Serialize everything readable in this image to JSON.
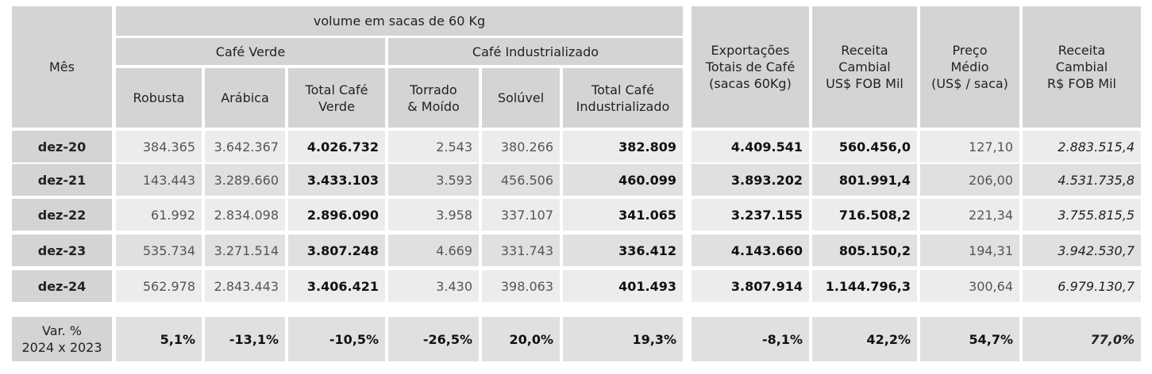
{
  "header": {
    "mes": "Mês",
    "volume_group": "volume em sacas de 60 Kg",
    "cafe_verde": "Café Verde",
    "cafe_industrializado": "Café Industrializado",
    "robusta": "Robusta",
    "arabica": "Arábica",
    "total_verde": "Total Café\nVerde",
    "torrado": "Torrado\n& Moído",
    "soluvel": "Solúvel",
    "total_industrializado": "Total Café\nIndustrializado",
    "exportacoes": "Exportações\nTotais de Café\n(sacas 60Kg)",
    "receita_usd": "Receita\nCambial\nUS$ FOB Mil",
    "preco": "Preço\nMédio\n(US$ / saca)",
    "receita_brl": "Receita\nCambial\nR$ FOB Mil"
  },
  "rows": [
    {
      "mes": "dez-20",
      "robusta": "384.365",
      "arabica": "3.642.367",
      "total_verde": "4.026.732",
      "torrado": "2.543",
      "soluvel": "380.266",
      "total_ind": "382.809",
      "exportacoes": "4.409.541",
      "receita_usd": "560.456,0",
      "preco": "127,10",
      "receita_brl": "2.883.515,4"
    },
    {
      "mes": "dez-21",
      "robusta": "143.443",
      "arabica": "3.289.660",
      "total_verde": "3.433.103",
      "torrado": "3.593",
      "soluvel": "456.506",
      "total_ind": "460.099",
      "exportacoes": "3.893.202",
      "receita_usd": "801.991,4",
      "preco": "206,00",
      "receita_brl": "4.531.735,8"
    },
    {
      "mes": "dez-22",
      "robusta": "61.992",
      "arabica": "2.834.098",
      "total_verde": "2.896.090",
      "torrado": "3.958",
      "soluvel": "337.107",
      "total_ind": "341.065",
      "exportacoes": "3.237.155",
      "receita_usd": "716.508,2",
      "preco": "221,34",
      "receita_brl": "3.755.815,5"
    },
    {
      "mes": "dez-23",
      "robusta": "535.734",
      "arabica": "3.271.514",
      "total_verde": "3.807.248",
      "torrado": "4.669",
      "soluvel": "331.743",
      "total_ind": "336.412",
      "exportacoes": "4.143.660",
      "receita_usd": "805.150,2",
      "preco": "194,31",
      "receita_brl": "3.942.530,7"
    },
    {
      "mes": "dez-24",
      "robusta": "562.978",
      "arabica": "2.843.443",
      "total_verde": "3.406.421",
      "torrado": "3.430",
      "soluvel": "398.063",
      "total_ind": "401.493",
      "exportacoes": "3.807.914",
      "receita_usd": "1.144.796,3",
      "preco": "300,64",
      "receita_brl": "6.979.130,7"
    }
  ],
  "variation": {
    "label": "Var. %\n2024 x 2023",
    "robusta": "5,1%",
    "arabica": "-13,1%",
    "total_verde": "-10,5%",
    "torrado": "-26,5%",
    "soluvel": "20,0%",
    "total_ind": "19,3%",
    "exportacoes": "-8,1%",
    "receita_usd": "42,2%",
    "preco": "54,7%",
    "receita_brl": "77,0%"
  }
}
